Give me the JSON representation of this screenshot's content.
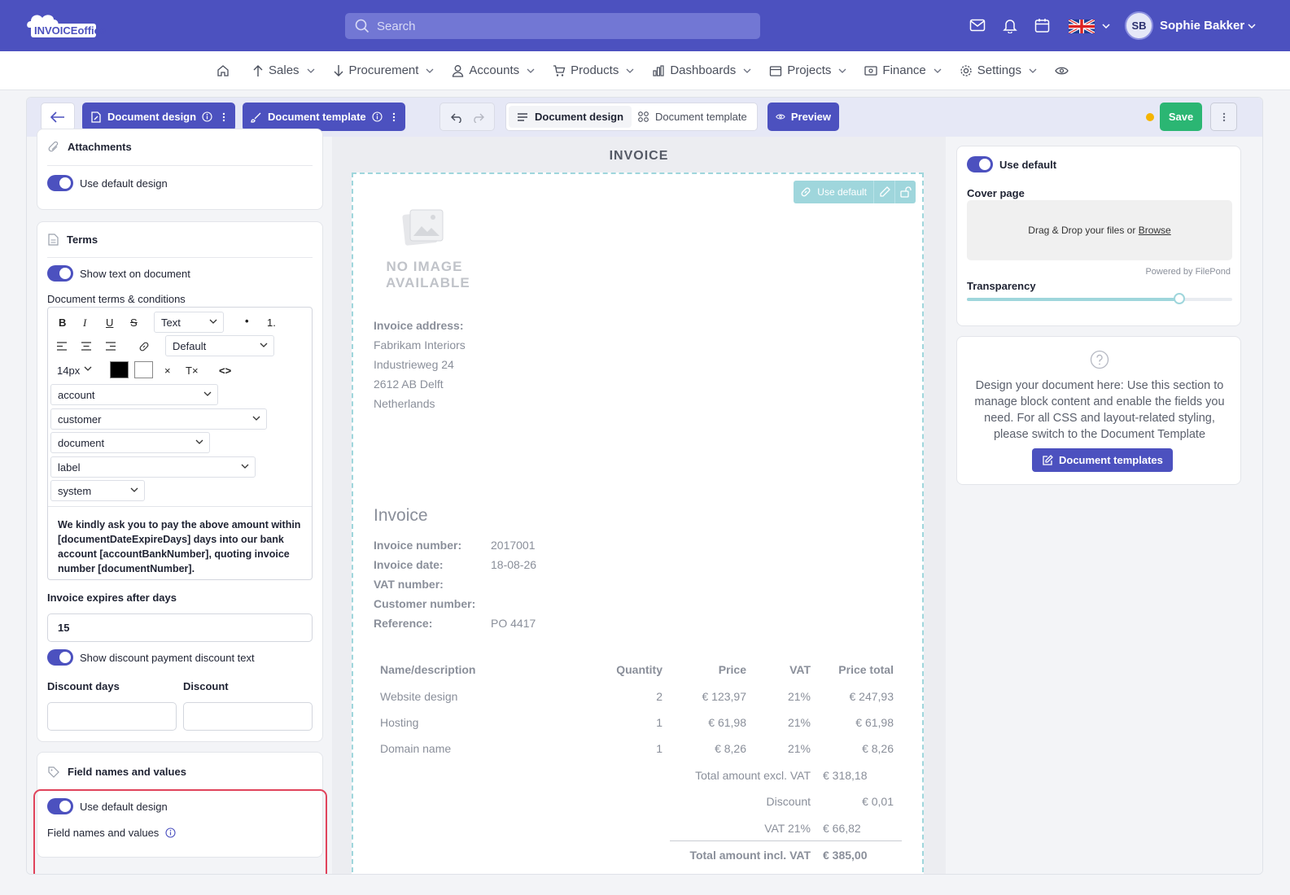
{
  "header": {
    "logo_text": "INVOICEoffice",
    "search_placeholder": "Search",
    "user_initials": "SB",
    "user_name": "Sophie Bakker"
  },
  "nav": {
    "items": [
      {
        "label": "Sales"
      },
      {
        "label": "Procurement"
      },
      {
        "label": "Accounts"
      },
      {
        "label": "Products"
      },
      {
        "label": "Dashboards"
      },
      {
        "label": "Projects"
      },
      {
        "label": "Finance"
      },
      {
        "label": "Settings"
      }
    ]
  },
  "toolbar": {
    "doc_design_btn": "Document design",
    "doc_template_btn": "Document template",
    "seg_design": "Document design",
    "seg_template": "Document template",
    "preview": "Preview",
    "save": "Save"
  },
  "left": {
    "attachments_title": "Attachments",
    "attachments_toggle": "Use default design",
    "terms_title": "Terms",
    "terms_toggle": "Show text on document",
    "terms_label": "Document terms & conditions",
    "editor": {
      "format_select": "Text",
      "font_select": "Default",
      "size_select": "14px",
      "var_selects": [
        "account",
        "customer",
        "document",
        "label",
        "system"
      ],
      "text": "We kindly ask you to pay the above amount within [documentDateExpireDays] days into our bank account [accountBankNumber], quoting invoice number [documentNumber]."
    },
    "expires_label": "Invoice expires after days",
    "expires_value": "15",
    "discount_toggle": "Show discount payment discount text",
    "discount_days_label": "Discount days",
    "discount_label": "Discount",
    "fields_title": "Field names and values",
    "fields_toggle": "Use default design",
    "fields_label": "Field names and values"
  },
  "canvas": {
    "title": "INVOICE",
    "use_default": "Use default",
    "no_image": [
      "NO IMAGE",
      "AVAILABLE"
    ],
    "address_label": "Invoice address:",
    "address_lines": [
      "Fabrikam Interiors",
      "Industrieweg 24",
      "2612 AB Delft",
      "Netherlands"
    ],
    "heading": "Invoice",
    "meta": [
      {
        "label": "Invoice number:",
        "value": "2017001"
      },
      {
        "label": "Invoice date:",
        "value": "18-08-26"
      },
      {
        "label": "VAT number:",
        "value": ""
      },
      {
        "label": "Customer number:",
        "value": ""
      },
      {
        "label": "Reference:",
        "value": "PO 4417"
      }
    ],
    "columns": [
      "Name/description",
      "Quantity",
      "Price",
      "VAT",
      "Price total"
    ],
    "rows": [
      {
        "name": "Website design",
        "qty": "2",
        "price": "€ 123,97",
        "vat": "21%",
        "total": "€ 247,93"
      },
      {
        "name": "Hosting",
        "qty": "1",
        "price": "€ 61,98",
        "vat": "21%",
        "total": "€ 61,98"
      },
      {
        "name": "Domain name",
        "qty": "1",
        "price": "€ 8,26",
        "vat": "21%",
        "total": "€ 8,26"
      }
    ],
    "totals": [
      {
        "label": "Total amount excl. VAT",
        "value": "€ 318,18"
      },
      {
        "label": "Discount",
        "value": "€ 0,01"
      },
      {
        "label": "VAT 21%",
        "value": "€ 66,82"
      },
      {
        "label": "Total amount incl. VAT",
        "value": "€ 385,00"
      }
    ]
  },
  "right": {
    "use_default": "Use default",
    "cover_label": "Cover page",
    "drop_text": "Drag & Drop your files or",
    "browse": "Browse",
    "powered": "Powered by FilePond",
    "transparency_label": "Transparency",
    "transparency_value": 0.8,
    "help_text": "Design your document here: Use this section to manage block content and enable the fields you need. For all CSS and layout-related styling, please switch to the Document Template",
    "doc_templates_btn": "Document templates"
  },
  "colors": {
    "primary": "#4c51bf",
    "accent": "#9fd6dc",
    "save": "#2bb673",
    "highlight": "#e0435b"
  }
}
